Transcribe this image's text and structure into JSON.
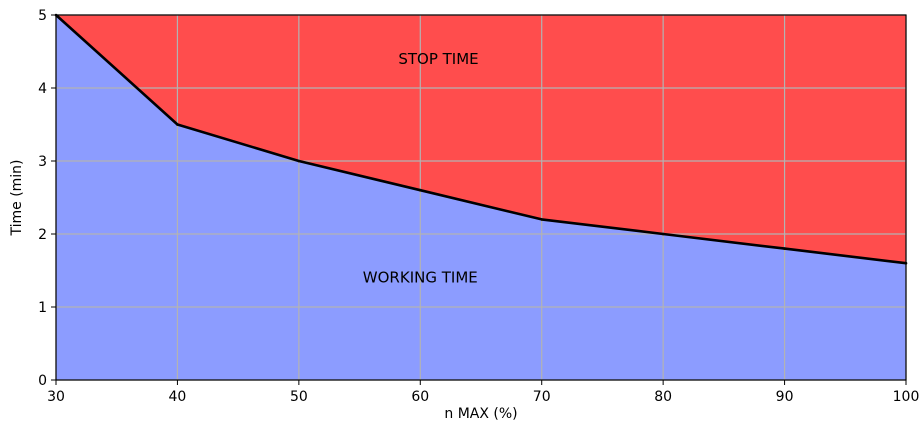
{
  "chart_data": {
    "type": "area",
    "xlabel": "n MAX (%)",
    "ylabel": "Time (min)",
    "xlim": [
      30,
      100
    ],
    "ylim": [
      0,
      5
    ],
    "xticks": [
      30,
      40,
      50,
      60,
      70,
      80,
      90,
      100
    ],
    "yticks": [
      0,
      1,
      2,
      3,
      4,
      5
    ],
    "grid": true,
    "x": [
      30,
      40,
      50,
      60,
      70,
      80,
      90,
      100
    ],
    "series": [
      {
        "values": [
          5.0,
          3.5,
          3.0,
          2.6,
          2.2,
          2.0,
          1.8,
          1.6
        ],
        "line_color": "#000000"
      }
    ],
    "regions": {
      "below": {
        "label": "WORKING TIME",
        "label_at": [
          60,
          1.2
        ],
        "color": "#8c9cff"
      },
      "above": {
        "label": "STOP TIME",
        "label_at": [
          61.5,
          4.4
        ],
        "color": "#ff4d4d"
      }
    },
    "grid_color": "#b3b3b3"
  }
}
